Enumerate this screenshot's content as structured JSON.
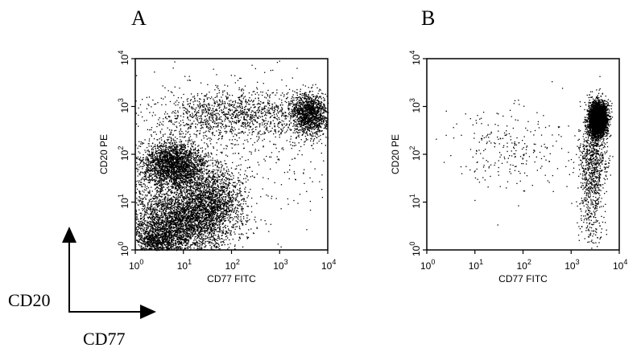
{
  "figure": {
    "legend_y_label": "CD20",
    "legend_x_label": "CD77"
  },
  "chart_data": [
    {
      "type": "scatter",
      "panel": "A",
      "xlabel": "CD77 FITC",
      "ylabel": "CD20 PE",
      "x_scale": "log",
      "y_scale": "log",
      "xlim": [
        1,
        10000
      ],
      "ylim": [
        1,
        10000
      ],
      "x_ticks": [
        1,
        10,
        100,
        1000,
        10000
      ],
      "y_ticks": [
        1,
        10,
        100,
        1000,
        10000
      ],
      "tick_base": "10",
      "tick_exponents": [
        "0",
        "1",
        "2",
        "3",
        "4"
      ],
      "grid": false,
      "point_color": "#000000",
      "populations": [
        {
          "center": [
            6,
            60
          ],
          "spread_log10": [
            0.35,
            0.25
          ],
          "count": 2600
        },
        {
          "center": [
            8,
            4
          ],
          "spread_log10": [
            0.55,
            0.35
          ],
          "count": 3400
        },
        {
          "center": [
            35,
            12
          ],
          "spread_log10": [
            0.35,
            0.3
          ],
          "count": 1400
        },
        {
          "center": [
            4000,
            700
          ],
          "spread_log10": [
            0.2,
            0.22
          ],
          "count": 1300
        },
        {
          "center": [
            100,
            700
          ],
          "spread_log10": [
            0.9,
            0.25
          ],
          "count": 1200
        },
        {
          "center": [
            3,
            1.5
          ],
          "spread_log10": [
            0.3,
            0.15
          ],
          "count": 700
        },
        {
          "center": [
            200,
            200
          ],
          "spread_log10": [
            1.0,
            0.8
          ],
          "count": 500
        }
      ]
    },
    {
      "type": "scatter",
      "panel": "B",
      "xlabel": "CD77 FITC",
      "ylabel": "CD20 PE",
      "x_scale": "log",
      "y_scale": "log",
      "xlim": [
        1,
        10000
      ],
      "ylim": [
        1,
        10000
      ],
      "x_ticks": [
        1,
        10,
        100,
        1000,
        10000
      ],
      "y_ticks": [
        1,
        10,
        100,
        1000,
        10000
      ],
      "tick_base": "10",
      "tick_exponents": [
        "0",
        "1",
        "2",
        "3",
        "4"
      ],
      "grid": false,
      "point_color": "#000000",
      "populations": [
        {
          "center": [
            3500,
            550
          ],
          "spread_log10": [
            0.09,
            0.17
          ],
          "count": 4200
        },
        {
          "center": [
            2800,
            80
          ],
          "spread_log10": [
            0.14,
            0.45
          ],
          "count": 700
        },
        {
          "center": [
            2600,
            8
          ],
          "spread_log10": [
            0.12,
            0.45
          ],
          "count": 250
        },
        {
          "center": [
            60,
            120
          ],
          "spread_log10": [
            0.65,
            0.45
          ],
          "count": 260
        }
      ]
    }
  ]
}
